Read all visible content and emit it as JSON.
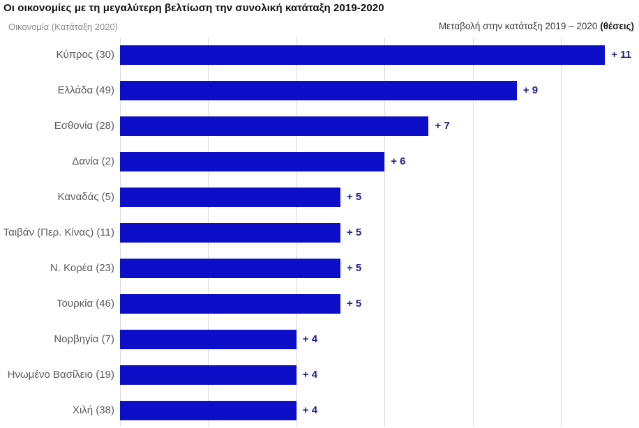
{
  "title": "Οι οικονομίες με τη μεγαλύτερη βελτίωση την συνολική κατάταξη 2019-2020",
  "header": {
    "left": "Οικονομία (Κατάταξη 2020)",
    "right_regular": "Μεταβολή στην κατάταξη 2019 – 2020 ",
    "right_bold": "(θέσεις)"
  },
  "colors": {
    "bar": "#0d0ec8",
    "value_label": "#20218f",
    "category_label": "#595959",
    "gridline": "#d9d9d9",
    "title": "#111111",
    "header_left": "#8a8a8a",
    "header_right": "#3b3b3b"
  },
  "chart_data": {
    "type": "bar",
    "orientation": "horizontal",
    "title": "Οι οικονομίες με τη μεγαλύτερη βελτίωση την συνολική κατάταξη 2019-2020",
    "xlabel": "Μεταβολή στην κατάταξη 2019 – 2020 (θέσεις)",
    "ylabel": "Οικονομία (Κατάταξη 2020)",
    "categories": [
      "Κύπρος (30)",
      "Ελλάδα (49)",
      "Εσθονία (28)",
      "Δανία (2)",
      "Καναδάς (5)",
      "Ταιβάν (Περ. Κίνας) (11)",
      "Ν. Κορέα (23)",
      "Τουρκία (46)",
      "Νορβηγία (7)",
      "Ηνωμένο Βασίλειο (19)",
      "Χιλή (38)"
    ],
    "values": [
      11,
      9,
      7,
      6,
      5,
      5,
      5,
      5,
      4,
      4,
      4
    ],
    "value_labels": [
      "+ 11",
      "+ 9",
      "+ 7",
      "+ 6",
      "+ 5",
      "+ 5",
      "+ 5",
      "+ 5",
      "+ 4",
      "+ 4",
      "+ 4"
    ],
    "xlim": [
      0,
      11.8
    ],
    "gridline_interval": 2,
    "grid": "vertical-only",
    "legend": "none"
  }
}
